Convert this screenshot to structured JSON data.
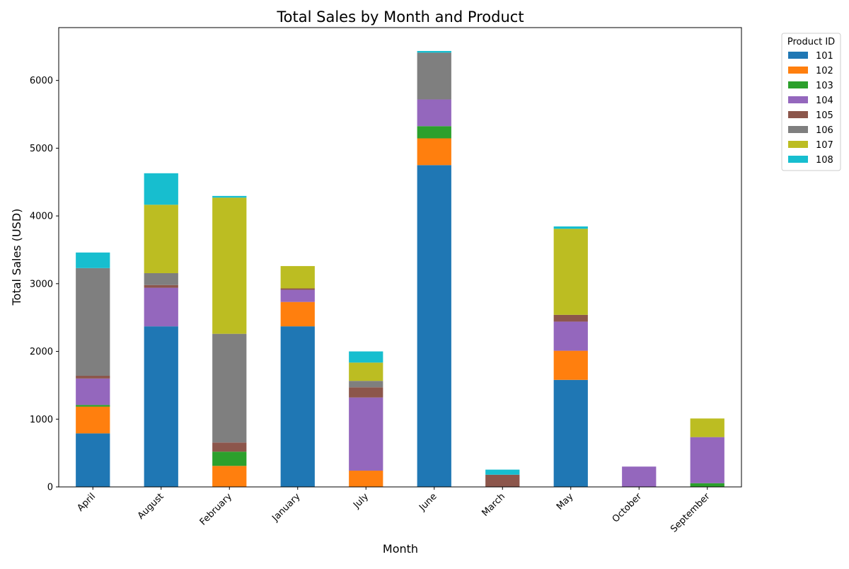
{
  "chart_data": {
    "type": "bar",
    "stacked": true,
    "title": "Total Sales by Month and Product",
    "xlabel": "Month",
    "ylabel": "Total Sales (USD)",
    "ylim": [
      0,
      6780
    ],
    "yticks": [
      0,
      1000,
      2000,
      3000,
      4000,
      5000,
      6000
    ],
    "grid": false,
    "legend_title": "Product ID",
    "legend_position": "outside-top-right",
    "categories": [
      "April",
      "August",
      "February",
      "January",
      "July",
      "June",
      "March",
      "May",
      "October",
      "September"
    ],
    "series": [
      {
        "name": "101",
        "color": "#1f77b4",
        "values": [
          790,
          2370,
          0,
          2370,
          0,
          4750,
          0,
          1580,
          0,
          0
        ]
      },
      {
        "name": "102",
        "color": "#ff7f0e",
        "values": [
          395,
          0,
          310,
          360,
          240,
          395,
          0,
          430,
          0,
          0
        ]
      },
      {
        "name": "103",
        "color": "#2ca02c",
        "values": [
          25,
          0,
          210,
          0,
          0,
          180,
          0,
          0,
          0,
          55
        ]
      },
      {
        "name": "104",
        "color": "#9467bd",
        "values": [
          390,
          570,
          0,
          180,
          1080,
          395,
          0,
          430,
          300,
          680
        ]
      },
      {
        "name": "105",
        "color": "#8c564b",
        "values": [
          40,
          40,
          135,
          20,
          150,
          0,
          180,
          100,
          0,
          0
        ]
      },
      {
        "name": "106",
        "color": "#7f7f7f",
        "values": [
          1590,
          175,
          1605,
          0,
          95,
          690,
          0,
          0,
          0,
          0
        ]
      },
      {
        "name": "107",
        "color": "#bcbd22",
        "values": [
          0,
          1010,
          2010,
          330,
          270,
          0,
          0,
          1270,
          0,
          275
        ]
      },
      {
        "name": "108",
        "color": "#17becf",
        "values": [
          230,
          465,
          25,
          0,
          165,
          25,
          75,
          35,
          0,
          0
        ]
      }
    ]
  }
}
